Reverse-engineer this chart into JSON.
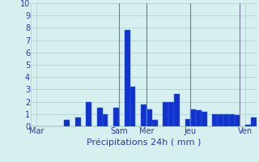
{
  "values": [
    0,
    0,
    0,
    0,
    0,
    0,
    0.5,
    0,
    0.7,
    0,
    2.0,
    0,
    1.5,
    1.0,
    0,
    1.5,
    0,
    7.8,
    3.2,
    0,
    1.8,
    1.4,
    0.5,
    0,
    2.0,
    2.0,
    2.6,
    0,
    0.6,
    1.4,
    1.3,
    1.2,
    0,
    1.0,
    1.0,
    1.0,
    1.0,
    0.9,
    0,
    0.15,
    0.7
  ],
  "day_labels": [
    "Mar",
    "Sam",
    "Mer",
    "Jeu",
    "Ven"
  ],
  "day_tick_positions": [
    0.5,
    15.5,
    20.5,
    28.5,
    38.5
  ],
  "vline_bar_indices": [
    16,
    21,
    29,
    38
  ],
  "xlabel": "Précipitations 24h ( mm )",
  "ylim": [
    0,
    10
  ],
  "yticks": [
    0,
    1,
    2,
    3,
    4,
    5,
    6,
    7,
    8,
    9,
    10
  ],
  "bar_color": "#1133cc",
  "bar_edge_color": "#3366ee",
  "bg_color": "#d6efef",
  "grid_color": "#b0cccc",
  "vline_color": "#777799",
  "xlabel_color": "#3333aa",
  "xlabel_fontsize": 8,
  "tick_color": "#3333aa",
  "tick_fontsize": 7,
  "ytick_fontsize": 7
}
